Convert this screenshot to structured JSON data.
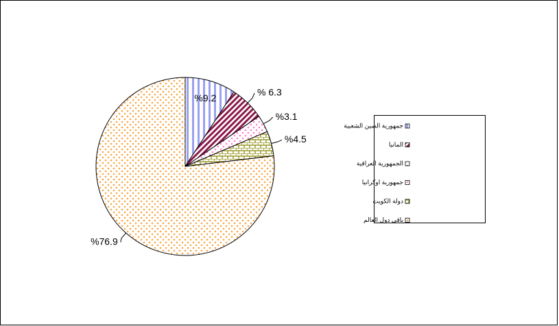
{
  "chart_data": {
    "type": "pie",
    "categories": [
      "جمهورية الصين الشعبية",
      "المانيا",
      "الجمهورية العراقية",
      "جمهورية اوكرانيا",
      "دولة الكويت",
      "باقى دول العالم"
    ],
    "values": [
      9.2,
      6.3,
      0,
      3.1,
      4.5,
      76.9
    ],
    "value_labels": [
      "%9.2",
      "% 6.3",
      null,
      "%3.1",
      "%4.5",
      "%76.9"
    ],
    "colors": [
      "#9aa0f0",
      "#8b1a4a",
      "#5aa040",
      "#ff7fc8",
      "#9a9a2a",
      "#f5a845"
    ],
    "legend": "right"
  }
}
